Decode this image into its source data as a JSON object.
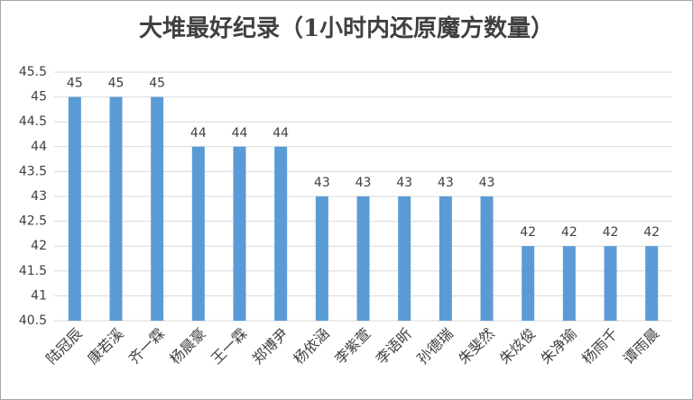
{
  "chart_data": {
    "type": "bar",
    "title": "大堆最好纪录（1小时内还原魔方数量）",
    "categories": [
      "陆冠辰",
      "康若溪",
      "齐一霖",
      "杨晨豪",
      "王一霖",
      "郑博尹",
      "杨依涵",
      "李紫萱",
      "李语昕",
      "孙德瑞",
      "朱斐然",
      "朱炫俊",
      "朱净瑜",
      "杨雨千",
      "谭雨晨"
    ],
    "values": [
      45,
      45,
      45,
      44,
      44,
      44,
      43,
      43,
      43,
      43,
      43,
      42,
      42,
      42,
      42
    ],
    "color": "#5b9bd5",
    "ylim": [
      40.5,
      45.5
    ],
    "yticks": [
      40.5,
      41,
      41.5,
      42,
      42.5,
      43,
      43.5,
      44,
      44.5,
      45,
      45.5
    ],
    "grid": true
  }
}
